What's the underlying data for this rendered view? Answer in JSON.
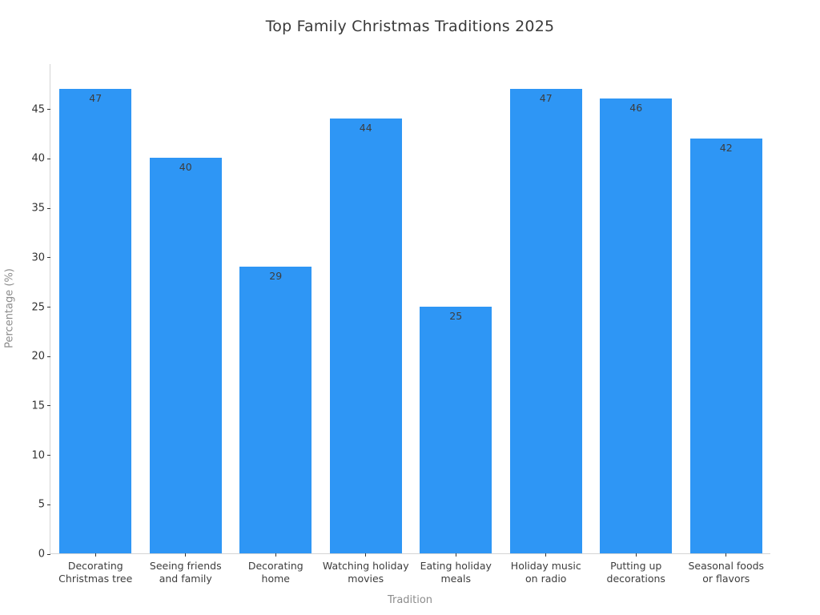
{
  "title": "Top Family Christmas Traditions 2025",
  "chart_data": {
    "type": "bar",
    "title": "Top Family Christmas Traditions 2025",
    "xlabel": "Tradition",
    "ylabel": "Percentage (%)",
    "categories": [
      "Decorating Christmas tree",
      "Seeing friends and family",
      "Decorating home",
      "Watching holiday movies",
      "Eating holiday meals",
      "Holiday music on radio",
      "Putting up decorations",
      "Seasonal foods or flavors"
    ],
    "category_lines": [
      [
        "Decorating",
        "Christmas tree"
      ],
      [
        "Seeing friends",
        "and family"
      ],
      [
        "Decorating",
        "home"
      ],
      [
        "Watching holiday",
        "movies"
      ],
      [
        "Eating holiday",
        "meals"
      ],
      [
        "Holiday music",
        "on radio"
      ],
      [
        "Putting up",
        "decorations"
      ],
      [
        "Seasonal foods",
        "or flavors"
      ]
    ],
    "values": [
      47,
      40,
      29,
      44,
      25,
      47,
      46,
      42
    ],
    "value_labels_shown": true,
    "yticks": [
      0,
      5,
      10,
      15,
      20,
      25,
      30,
      35,
      40,
      45
    ],
    "ylim": [
      0,
      49.6
    ],
    "grid": false,
    "legend_position": "none",
    "bar_color": "#2E96F5",
    "value_label_color": "#3d3d3d",
    "tick_label_color": "#333333",
    "axis_title_color": "#8c8c8c",
    "spine_color": "#d4d4d4",
    "background_color": "#ffffff"
  }
}
